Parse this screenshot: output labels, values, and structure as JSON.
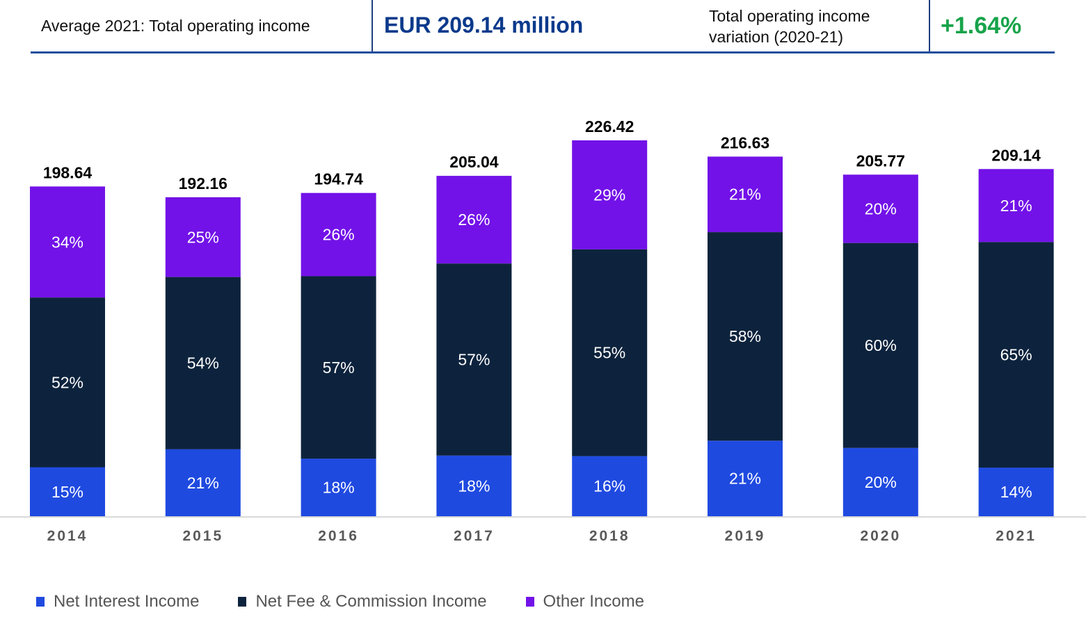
{
  "header": {
    "label": "Average 2021: Total operating income",
    "value": "EUR 209.14 million",
    "variation_label": "Total operating income variation (2020-21)",
    "variation_value": "+1.64%"
  },
  "colors": {
    "net_interest": "#1f4ae0",
    "net_fee": "#0d233d",
    "other": "#7212e8",
    "header_accent": "#0b3a8c",
    "positive": "#17a34a"
  },
  "chart_data": {
    "type": "bar",
    "stacked": true,
    "title": "",
    "xlabel": "",
    "ylabel": "",
    "ylim": [
      0,
      226.42
    ],
    "grid": false,
    "legend_position": "bottom-left",
    "categories": [
      "2014",
      "2015",
      "2016",
      "2017",
      "2018",
      "2019",
      "2020",
      "2021"
    ],
    "totals": [
      198.64,
      192.16,
      194.74,
      205.04,
      226.42,
      216.63,
      205.77,
      209.14
    ],
    "total_labels": [
      "198.64",
      "192.16",
      "194.74",
      "205.04",
      "226.42",
      "216.63",
      "205.77",
      "209.14"
    ],
    "series": [
      {
        "name": "Net Interest Income",
        "color": "#1f4ae0",
        "share_pct": [
          15,
          21,
          18,
          18,
          16,
          21,
          20,
          14
        ]
      },
      {
        "name": "Net Fee & Commission Income",
        "color": "#0d233d",
        "share_pct": [
          52,
          54,
          57,
          57,
          55,
          58,
          60,
          65
        ]
      },
      {
        "name": "Other Income",
        "color": "#7212e8",
        "share_pct": [
          34,
          25,
          26,
          26,
          29,
          21,
          20,
          21
        ]
      }
    ]
  }
}
